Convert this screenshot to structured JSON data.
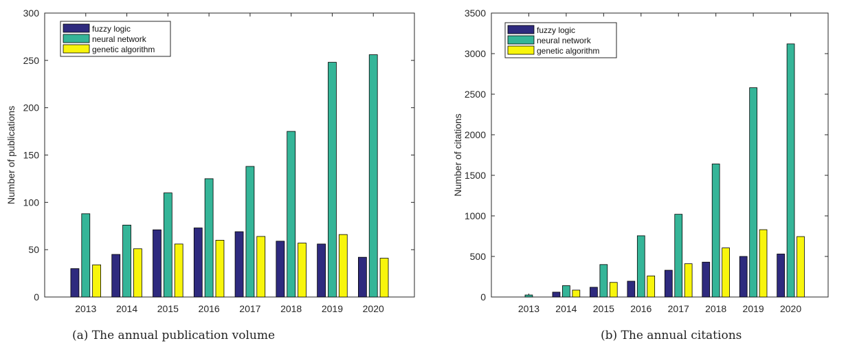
{
  "colors": {
    "fuzzy": "#2e2a7e",
    "neural": "#35b598",
    "genetic": "#f8f50c"
  },
  "chart_data": [
    {
      "type": "bar",
      "title": "",
      "caption": "(a) The annual publication volume",
      "xlabel": "",
      "ylabel": "Number of publications",
      "ylim": [
        0,
        300
      ],
      "yticks": [
        "0",
        "50",
        "100",
        "150",
        "200",
        "250",
        "300"
      ],
      "categories": [
        "2013",
        "2014",
        "2015",
        "2016",
        "2017",
        "2018",
        "2019",
        "2020"
      ],
      "legend_position": "top-left",
      "grid": false,
      "series": [
        {
          "name": "fuzzy logic",
          "values": [
            30,
            45,
            71,
            73,
            69,
            59,
            56,
            42
          ]
        },
        {
          "name": "neural network",
          "values": [
            88,
            76,
            110,
            125,
            138,
            175,
            248,
            256
          ]
        },
        {
          "name": "genetic algorithm",
          "values": [
            34,
            51,
            56,
            60,
            64,
            57,
            66,
            41
          ]
        }
      ]
    },
    {
      "type": "bar",
      "title": "",
      "caption": "(b) The annual citations",
      "xlabel": "",
      "ylabel": "Number of citations",
      "ylim": [
        0,
        3500
      ],
      "yticks": [
        "0",
        "500",
        "1000",
        "1500",
        "2000",
        "2500",
        "3000",
        "3500"
      ],
      "categories": [
        "2013",
        "2014",
        "2015",
        "2016",
        "2017",
        "2018",
        "2019",
        "2020"
      ],
      "legend_position": "top-left",
      "grid": false,
      "series": [
        {
          "name": "fuzzy logic",
          "values": [
            0,
            60,
            120,
            195,
            330,
            430,
            500,
            530
          ]
        },
        {
          "name": "neural network",
          "values": [
            25,
            140,
            400,
            755,
            1020,
            1640,
            2580,
            3120
          ]
        },
        {
          "name": "genetic algorithm",
          "values": [
            0,
            85,
            180,
            260,
            410,
            605,
            830,
            745
          ]
        }
      ]
    }
  ]
}
